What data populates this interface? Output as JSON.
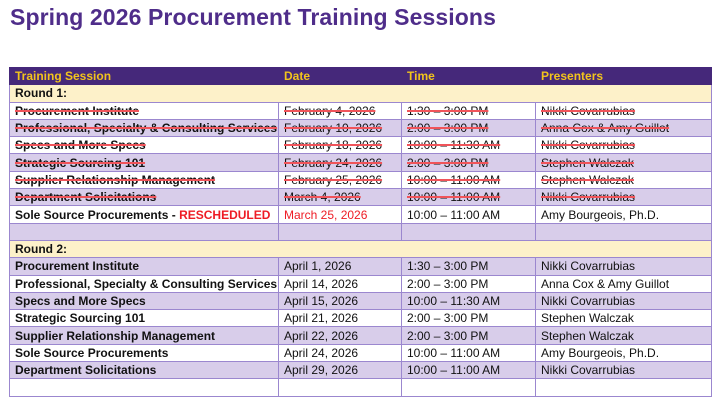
{
  "title": "Spring 2026 Procurement Training Sessions",
  "colors": {
    "header_bg": "#45287a",
    "header_text": "#f2c41c",
    "row_alt": "#d8cdea",
    "round_bg": "#fdf1c9",
    "cancel_strike": "#f0545a",
    "rescheduled": "#ee1c25"
  },
  "headers": [
    "Training Session",
    "Date",
    "Time",
    "Presenters"
  ],
  "round1": {
    "label": "Round 1:",
    "rows": [
      {
        "session": "Procurement Institute",
        "date": "February 4, 2026",
        "time": "1:30 – 3:00 PM",
        "presenters": "Nikki Covarrubias",
        "cancelled": true
      },
      {
        "session": "Professional, Specialty & Consulting Services",
        "date": "February 10, 2026",
        "time": "2:00 – 3:00 PM",
        "presenters": "Anna Cox & Amy Guillot",
        "cancelled": true
      },
      {
        "session": "Specs and More Specs",
        "date": "February 18, 2026",
        "time": "10:00 – 11:30 AM",
        "presenters": "Nikki Covarrubias",
        "cancelled": true
      },
      {
        "session": "Strategic Sourcing 101",
        "date": "February 24, 2026",
        "time": "2:00 – 3:00 PM",
        "presenters": "Stephen Walczak",
        "cancelled": true
      },
      {
        "session": "Supplier Relationship Management",
        "date": "February 25, 2026",
        "time": "10:00 – 11:00 AM",
        "presenters": "Stephen Walczak",
        "cancelled": true
      },
      {
        "session": "Department Solicitations",
        "date": "March 4, 2026",
        "time": "10:00 – 11:00 AM",
        "presenters": "Nikki Covarrubias",
        "cancelled": true
      },
      {
        "session": "Sole Source Procurements - ",
        "note": "RESCHEDULED",
        "date": "March 25, 2026",
        "time": "10:00 – 11:00 AM",
        "presenters": "Amy Bourgeois, Ph.D.",
        "rescheduled": true
      }
    ]
  },
  "round2": {
    "label": "Round 2:",
    "rows": [
      {
        "session": "Procurement Institute",
        "date": "April 1, 2026",
        "time": "1:30 – 3:00 PM",
        "presenters": "Nikki Covarrubias"
      },
      {
        "session": "Professional, Specialty & Consulting Services",
        "date": "April 14, 2026",
        "time": "2:00 – 3:00 PM",
        "presenters": "Anna Cox & Amy Guillot"
      },
      {
        "session": "Specs and More Specs",
        "date": "April 15, 2026",
        "time": "10:00 – 11:30 AM",
        "presenters": "Nikki Covarrubias"
      },
      {
        "session": "Strategic Sourcing 101",
        "date": "April 21, 2026",
        "time": "2:00 – 3:00 PM",
        "presenters": "Stephen Walczak"
      },
      {
        "session": "Supplier Relationship Management",
        "date": "April 22, 2026",
        "time": "2:00 – 3:00 PM",
        "presenters": "Stephen Walczak"
      },
      {
        "session": "Sole Source Procurements",
        "date": "April 24, 2026",
        "time": "10:00 – 11:00 AM",
        "presenters": "Amy Bourgeois, Ph.D."
      },
      {
        "session": "Department Solicitations",
        "date": "April 29, 2026",
        "time": "10:00 – 11:00 AM",
        "presenters": "Nikki Covarrubias"
      }
    ]
  }
}
